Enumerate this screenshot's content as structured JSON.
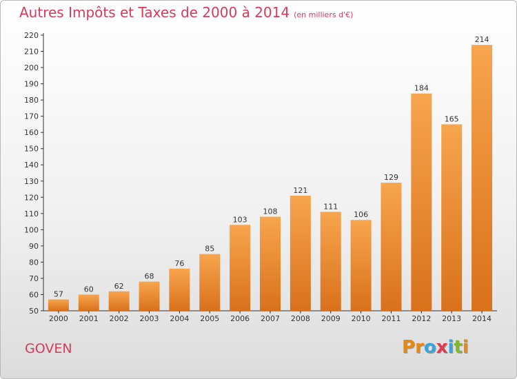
{
  "chart_data": {
    "type": "bar",
    "title": "Autres Impôts et Taxes de 2000 à 2014",
    "subtitle": "(en milliers d'€)",
    "categories": [
      "2000",
      "2001",
      "2002",
      "2003",
      "2004",
      "2005",
      "2006",
      "2007",
      "2008",
      "2009",
      "2010",
      "2011",
      "2012",
      "2013",
      "2014"
    ],
    "values": [
      57,
      60,
      62,
      68,
      76,
      85,
      103,
      108,
      121,
      111,
      106,
      129,
      184,
      165,
      214
    ],
    "ylim": [
      50,
      220
    ],
    "yticks": [
      50,
      60,
      70,
      80,
      90,
      100,
      110,
      120,
      130,
      140,
      150,
      160,
      170,
      180,
      190,
      200,
      210,
      220
    ],
    "grid": false,
    "bar_color_top": "#f7a54e",
    "bar_color_bottom": "#d9711b"
  },
  "footer": {
    "town": "GOVEN",
    "logo_letters": [
      "P",
      "r",
      "o",
      "x",
      "i",
      "t",
      "i"
    ],
    "logo_colors": [
      "#e58a16",
      "#e58a16",
      "#3aa3d9",
      "#e03a4e",
      "#3aa3d9",
      "#7dbb2b",
      "#e58a16"
    ]
  }
}
